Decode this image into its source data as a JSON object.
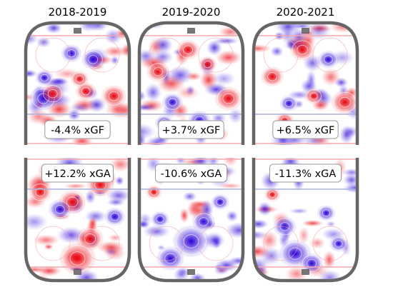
{
  "chart_data": {
    "type": "heatmap",
    "columns": [
      {
        "title": "2018-2019",
        "offense": {
          "label": "-4.4% xGF"
        },
        "defense": {
          "label": "+12.2% xGA"
        }
      },
      {
        "title": "2019-2020",
        "offense": {
          "label": "+3.7% xGF"
        },
        "defense": {
          "label": "-10.6% xGA"
        }
      },
      {
        "title": "2020-2021",
        "offense": {
          "label": "+6.5% xGF"
        },
        "defense": {
          "label": "-11.3% xGA"
        }
      }
    ],
    "colors": {
      "above_average": "#e8000a",
      "below_average": "#2a00d8",
      "neutral": "#ffffff",
      "rink_boards": "#666666",
      "red_line": "#f3a9ad",
      "blue_line": "#aab3dc",
      "net": "#777777"
    }
  }
}
